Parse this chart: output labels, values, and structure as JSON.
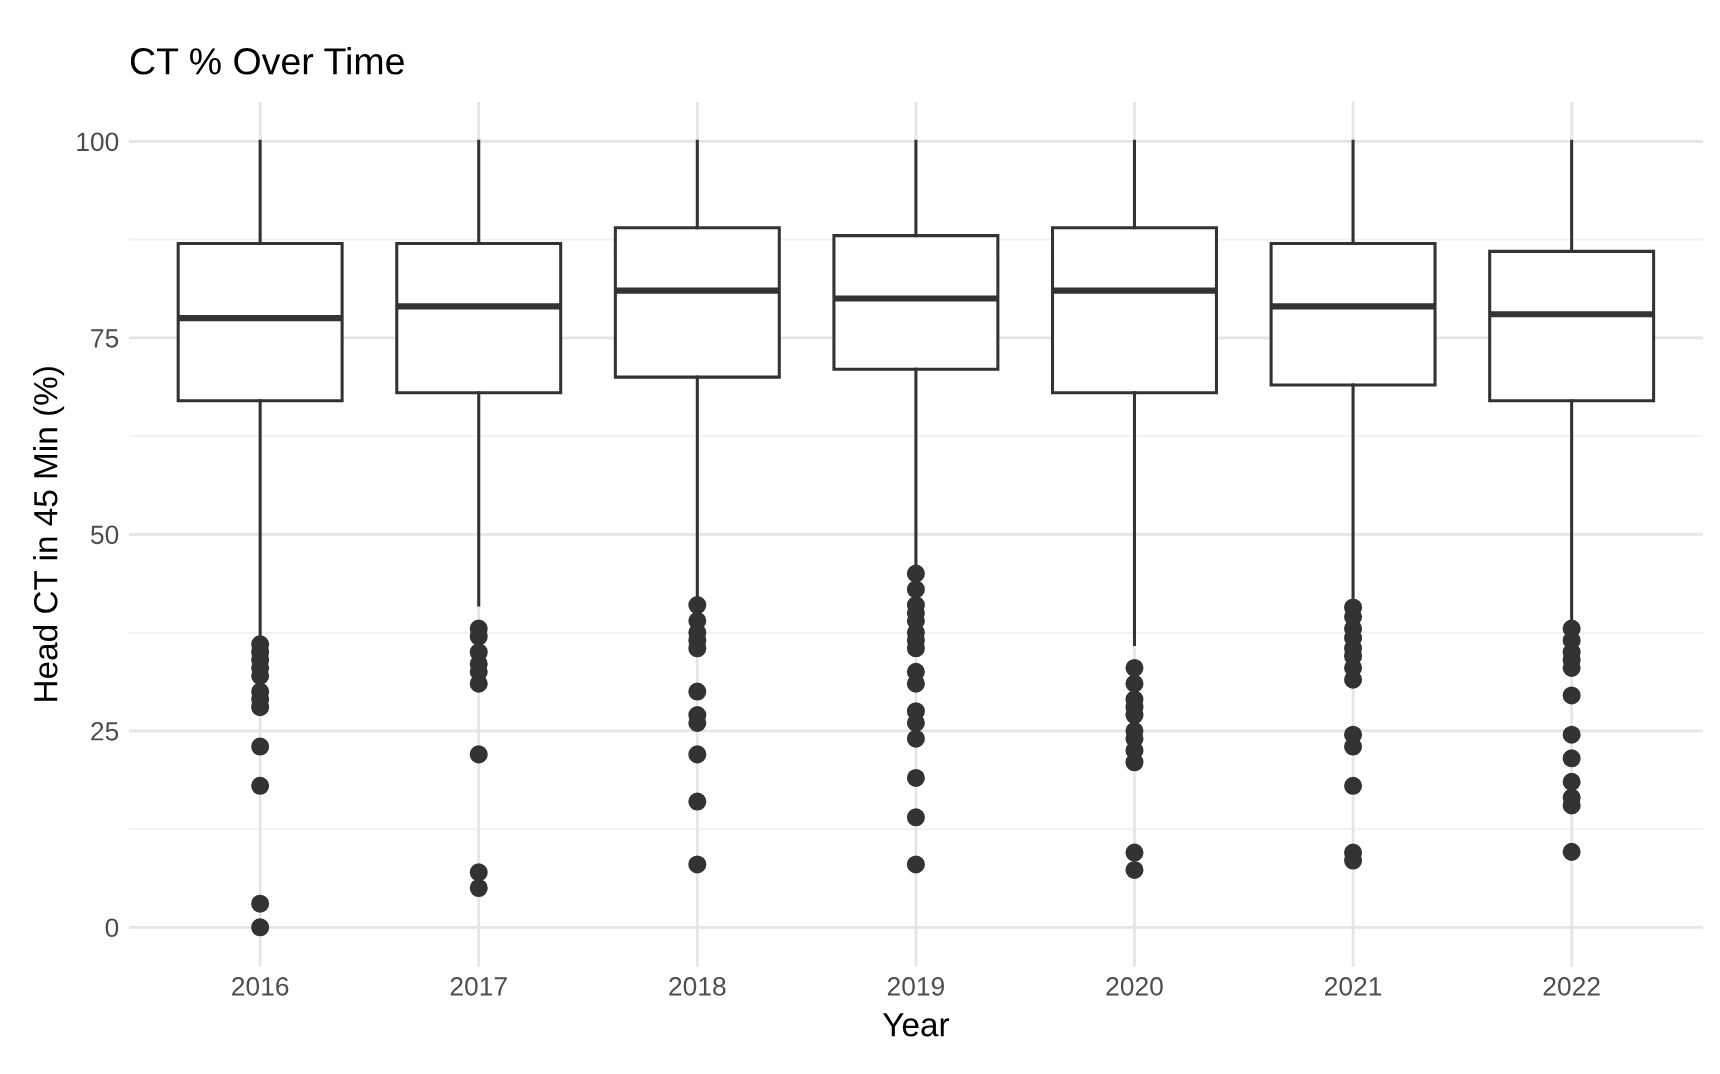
{
  "chart_data": {
    "type": "box",
    "title": "CT % Over Time",
    "xlabel": "Year",
    "ylabel": "Head CT in 45 Min (%)",
    "categories": [
      "2016",
      "2017",
      "2018",
      "2019",
      "2020",
      "2021",
      "2022"
    ],
    "boxes": [
      {
        "low": 37,
        "q1": 67,
        "median": 77.5,
        "q3": 87,
        "high": 100,
        "outliers": [
          36,
          35,
          34,
          33,
          32,
          30,
          29,
          28,
          23,
          18,
          3,
          0
        ]
      },
      {
        "low": 41,
        "q1": 68,
        "median": 79,
        "q3": 87,
        "high": 100,
        "outliers": [
          38,
          37,
          35,
          33.5,
          32.5,
          31,
          22,
          7,
          5
        ]
      },
      {
        "low": 42,
        "q1": 70,
        "median": 81,
        "q3": 89,
        "high": 100,
        "outliers": [
          41,
          39,
          37.5,
          36.5,
          35.5,
          30,
          27,
          26,
          22,
          16,
          8
        ]
      },
      {
        "low": 46,
        "q1": 71,
        "median": 80,
        "q3": 88,
        "high": 100,
        "outliers": [
          45,
          43,
          41,
          40,
          39,
          37.5,
          36.5,
          35.5,
          32.5,
          31,
          27.5,
          26,
          24,
          19,
          14,
          8
        ]
      },
      {
        "low": 36,
        "q1": 68,
        "median": 81,
        "q3": 89,
        "high": 100,
        "outliers": [
          33,
          31,
          29,
          28,
          27,
          25,
          24,
          22.5,
          21,
          9.5,
          7.3
        ]
      },
      {
        "low": 42,
        "q1": 69,
        "median": 79,
        "q3": 87,
        "high": 100,
        "outliers": [
          40.7,
          39.5,
          38,
          36.8,
          35.5,
          34.5,
          33,
          31.5,
          24.5,
          23,
          18,
          9.5,
          8.5
        ]
      },
      {
        "low": 39,
        "q1": 67,
        "median": 78,
        "q3": 86,
        "high": 100,
        "outliers": [
          38,
          36.5,
          35,
          34,
          33,
          29.5,
          24.5,
          21.5,
          18.5,
          16.5,
          15.5,
          9.6
        ]
      }
    ],
    "color": "#333333",
    "ylim": [
      -5,
      105
    ],
    "yticks": [
      0,
      25,
      50,
      75,
      100
    ],
    "grid": true
  }
}
